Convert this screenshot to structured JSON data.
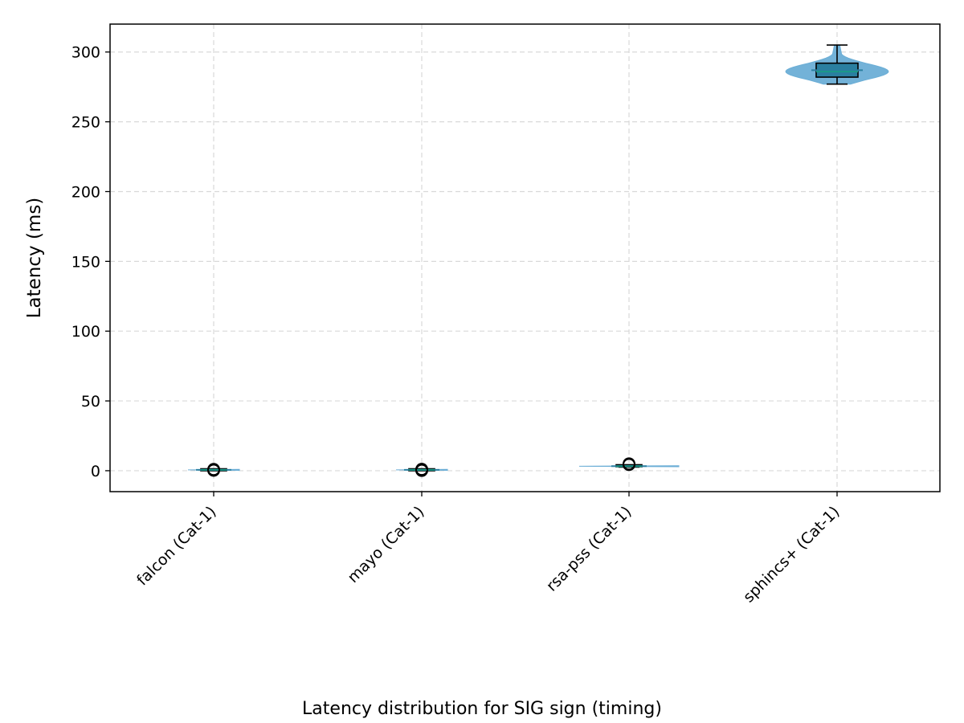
{
  "caption": "Latency distribution for SIG sign (timing)",
  "chart_data": {
    "type": "violin",
    "title": "",
    "xlabel": "",
    "ylabel": "Latency (ms)",
    "ylim": [
      -15,
      320
    ],
    "yticks": [
      0,
      50,
      100,
      150,
      200,
      250,
      300
    ],
    "grid": true,
    "categories": [
      "falcon (Cat-1)",
      "mayo (Cat-1)",
      "rsa-pss (Cat-1)",
      "sphincs+ (Cat-1)"
    ],
    "distributions": [
      {
        "name": "falcon (Cat-1)",
        "min": 0.3,
        "q1": 0.5,
        "median": 0.6,
        "mean": 0.6,
        "q3": 0.7,
        "max": 0.9,
        "outliers": [
          0.2,
          0.4,
          0.8,
          1.0
        ]
      },
      {
        "name": "mayo (Cat-1)",
        "min": 0.3,
        "q1": 0.5,
        "median": 0.6,
        "mean": 0.6,
        "q3": 0.7,
        "max": 0.9,
        "outliers": [
          0.1,
          0.3,
          0.9,
          1.1
        ]
      },
      {
        "name": "rsa-pss (Cat-1)",
        "min": 2.6,
        "q1": 3.0,
        "median": 3.2,
        "mean": 3.3,
        "q3": 3.6,
        "max": 4.0,
        "outliers": [
          4.3,
          4.6,
          5.0
        ]
      },
      {
        "name": "sphincs+ (Cat-1)",
        "min": 277,
        "q1": 282,
        "median": 286,
        "mean": 287,
        "q3": 292,
        "max": 305,
        "outliers": []
      }
    ],
    "colors": {
      "violin": "#6baed6",
      "box_edge": "#000000",
      "median": "#1a9988",
      "mean": "#2a7fa0",
      "grid": "#d9d9d9"
    }
  }
}
